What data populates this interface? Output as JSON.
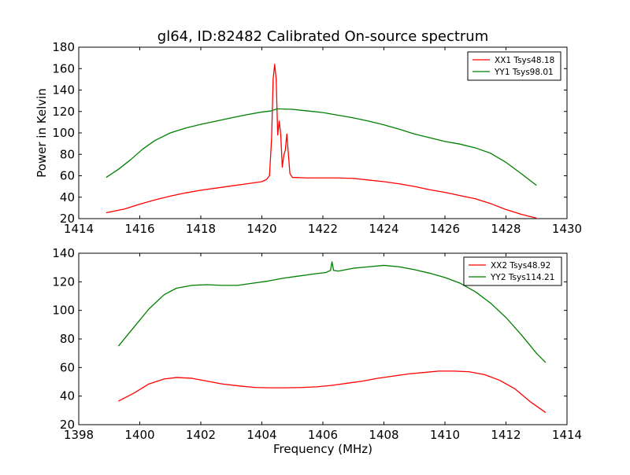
{
  "chart_data": [
    {
      "type": "line",
      "title": "gl64, ID:82482 Calibrated On-source spectrum",
      "xlabel": "",
      "ylabel": "Power in Kelvin",
      "xlim": [
        1414,
        1430
      ],
      "ylim": [
        20,
        180
      ],
      "x_ticks": [
        1414,
        1416,
        1418,
        1420,
        1422,
        1424,
        1426,
        1428,
        1430
      ],
      "y_ticks": [
        20,
        40,
        60,
        80,
        100,
        120,
        140,
        160,
        180
      ],
      "grid": false,
      "legend_position": "top-right",
      "series": [
        {
          "name": "XX1 Tsys48.18",
          "color": "#ff0000",
          "points": [
            [
              1414.9,
              25.5
            ],
            [
              1415.5,
              29
            ],
            [
              1416.0,
              33.5
            ],
            [
              1416.5,
              37.5
            ],
            [
              1417.0,
              41
            ],
            [
              1417.5,
              44
            ],
            [
              1418.0,
              46.5
            ],
            [
              1418.5,
              48.5
            ],
            [
              1419.0,
              50.5
            ],
            [
              1419.5,
              52.5
            ],
            [
              1420.0,
              54.5
            ],
            [
              1420.15,
              56.5
            ],
            [
              1420.25,
              60
            ],
            [
              1420.32,
              95
            ],
            [
              1420.37,
              150
            ],
            [
              1420.42,
              164
            ],
            [
              1420.47,
              150
            ],
            [
              1420.52,
              98
            ],
            [
              1420.57,
              111
            ],
            [
              1420.62,
              98
            ],
            [
              1420.67,
              68
            ],
            [
              1420.72,
              79
            ],
            [
              1420.77,
              84
            ],
            [
              1420.82,
              99
            ],
            [
              1420.87,
              80
            ],
            [
              1420.92,
              62
            ],
            [
              1421.0,
              58.5
            ],
            [
              1421.5,
              58
            ],
            [
              1422.0,
              58
            ],
            [
              1422.5,
              58
            ],
            [
              1423.0,
              57.5
            ],
            [
              1423.5,
              56
            ],
            [
              1424.0,
              54.5
            ],
            [
              1424.5,
              52.5
            ],
            [
              1425.0,
              50
            ],
            [
              1425.5,
              47
            ],
            [
              1426.0,
              44.5
            ],
            [
              1426.5,
              41.5
            ],
            [
              1427.0,
              38.5
            ],
            [
              1427.5,
              34
            ],
            [
              1428.0,
              28.5
            ],
            [
              1428.5,
              24
            ],
            [
              1429.0,
              20.5
            ]
          ]
        },
        {
          "name": "YY1 Tsys98.01",
          "color": "#007f00",
          "points": [
            [
              1414.9,
              58.5
            ],
            [
              1415.3,
              66
            ],
            [
              1415.7,
              75
            ],
            [
              1416.1,
              85
            ],
            [
              1416.5,
              93
            ],
            [
              1417.0,
              100
            ],
            [
              1417.5,
              104.5
            ],
            [
              1418.0,
              108
            ],
            [
              1418.5,
              111
            ],
            [
              1419.0,
              114
            ],
            [
              1419.5,
              117
            ],
            [
              1420.0,
              119.5
            ],
            [
              1420.3,
              120.5
            ],
            [
              1420.5,
              122.5
            ],
            [
              1421.0,
              122
            ],
            [
              1421.5,
              120.5
            ],
            [
              1422.0,
              119
            ],
            [
              1422.5,
              116.5
            ],
            [
              1423.0,
              114
            ],
            [
              1423.5,
              111
            ],
            [
              1424.0,
              107.5
            ],
            [
              1424.5,
              103.5
            ],
            [
              1425.0,
              99
            ],
            [
              1425.5,
              95.5
            ],
            [
              1426.0,
              92
            ],
            [
              1426.5,
              89.5
            ],
            [
              1427.0,
              86
            ],
            [
              1427.5,
              81
            ],
            [
              1428.0,
              72.5
            ],
            [
              1428.5,
              62
            ],
            [
              1429.0,
              51
            ]
          ]
        }
      ]
    },
    {
      "type": "line",
      "title": "",
      "xlabel": "Frequency (MHz)",
      "ylabel": "",
      "xlim": [
        1398,
        1414
      ],
      "ylim": [
        20,
        140
      ],
      "x_ticks": [
        1398,
        1400,
        1402,
        1404,
        1406,
        1408,
        1410,
        1412,
        1414
      ],
      "y_ticks": [
        20,
        40,
        60,
        80,
        100,
        120,
        140
      ],
      "grid": false,
      "legend_position": "top-right",
      "series": [
        {
          "name": "XX2 Tsys48.92",
          "color": "#ff0000",
          "points": [
            [
              1399.3,
              36.5
            ],
            [
              1399.8,
              42
            ],
            [
              1400.3,
              48.5
            ],
            [
              1400.8,
              52
            ],
            [
              1401.2,
              53
            ],
            [
              1401.7,
              52.5
            ],
            [
              1402.2,
              50.5
            ],
            [
              1402.7,
              48.5
            ],
            [
              1403.3,
              47
            ],
            [
              1403.8,
              46
            ],
            [
              1404.3,
              45.8
            ],
            [
              1404.8,
              45.8
            ],
            [
              1405.3,
              46
            ],
            [
              1405.8,
              46.5
            ],
            [
              1406.3,
              47.5
            ],
            [
              1406.8,
              49
            ],
            [
              1407.3,
              50.5
            ],
            [
              1407.8,
              52.5
            ],
            [
              1408.3,
              54
            ],
            [
              1408.8,
              55.5
            ],
            [
              1409.3,
              56.5
            ],
            [
              1409.8,
              57.5
            ],
            [
              1410.3,
              57.5
            ],
            [
              1410.8,
              57
            ],
            [
              1411.3,
              55
            ],
            [
              1411.8,
              51
            ],
            [
              1412.3,
              45
            ],
            [
              1412.8,
              36
            ],
            [
              1413.3,
              28.5
            ]
          ]
        },
        {
          "name": "YY2 Tsys114.21",
          "color": "#007f00",
          "points": [
            [
              1399.3,
              75
            ],
            [
              1399.8,
              88
            ],
            [
              1400.3,
              101
            ],
            [
              1400.8,
              111
            ],
            [
              1401.2,
              115.5
            ],
            [
              1401.7,
              117.5
            ],
            [
              1402.2,
              118
            ],
            [
              1402.7,
              117.5
            ],
            [
              1403.2,
              117.5
            ],
            [
              1403.7,
              119
            ],
            [
              1404.2,
              120.5
            ],
            [
              1404.7,
              122.5
            ],
            [
              1405.2,
              124
            ],
            [
              1405.7,
              125.5
            ],
            [
              1406.1,
              126.5
            ],
            [
              1406.25,
              128
            ],
            [
              1406.3,
              134
            ],
            [
              1406.35,
              128
            ],
            [
              1406.5,
              127.5
            ],
            [
              1407.0,
              129.5
            ],
            [
              1407.5,
              130.5
            ],
            [
              1408.0,
              131.5
            ],
            [
              1408.5,
              130.5
            ],
            [
              1409.0,
              128.5
            ],
            [
              1409.5,
              126
            ],
            [
              1410.0,
              123
            ],
            [
              1410.5,
              119
            ],
            [
              1411.0,
              113
            ],
            [
              1411.5,
              105
            ],
            [
              1412.0,
              95
            ],
            [
              1412.5,
              83
            ],
            [
              1413.0,
              70
            ],
            [
              1413.3,
              63.5
            ]
          ]
        }
      ]
    }
  ]
}
